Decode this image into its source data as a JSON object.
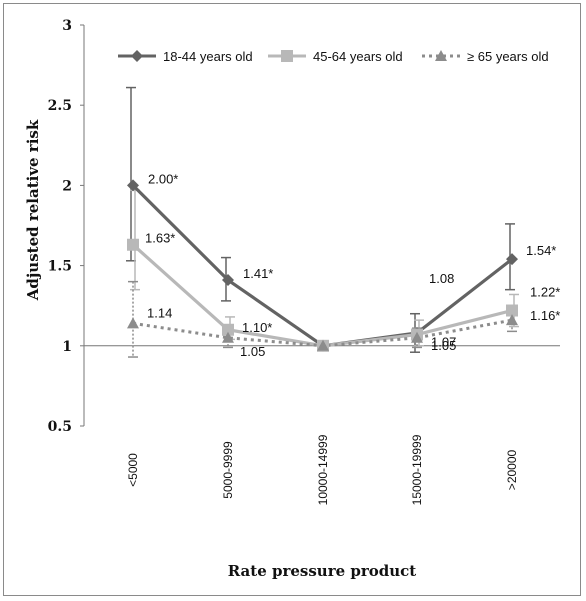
{
  "chart_data": {
    "type": "line",
    "xlabel": "Rate pressure product",
    "ylabel": "Adjusted relative risk",
    "categories": [
      "<5000",
      "5000-9999",
      "10000-14999",
      "15000-19999",
      ">20000"
    ],
    "ylim": [
      0.5,
      3
    ],
    "yticks": [
      "0.5",
      "1",
      "1.5",
      "2",
      "2.5",
      "3"
    ],
    "grid": false,
    "legend_position": "top",
    "series": [
      {
        "name": "18-44 years old",
        "values": [
          2.0,
          1.41,
          1.0,
          1.08,
          1.54
        ],
        "err_low": [
          1.53,
          1.28,
          null,
          0.96,
          1.35
        ],
        "err_high": [
          2.61,
          1.55,
          null,
          1.2,
          1.76
        ],
        "color": "#636363",
        "marker": "diamond",
        "line": "solid",
        "labels": [
          "2.00*",
          "1.41*",
          "",
          "1.08",
          "1.54*"
        ]
      },
      {
        "name": "45-64 years old",
        "values": [
          1.63,
          1.1,
          1.0,
          1.07,
          1.22
        ],
        "err_low": [
          1.35,
          1.04,
          null,
          1.0,
          1.12
        ],
        "err_high": [
          1.97,
          1.18,
          null,
          1.16,
          1.32
        ],
        "color": "#b8b8b8",
        "marker": "square",
        "line": "solid",
        "labels": [
          "1.63*",
          "1.10*",
          "",
          "1.07",
          "1.22*"
        ]
      },
      {
        "name": "≥ 65 years old",
        "values": [
          1.14,
          1.05,
          1.0,
          1.05,
          1.16
        ],
        "err_low": [
          0.93,
          0.99,
          null,
          0.99,
          1.09
        ],
        "err_high": [
          1.4,
          1.11,
          null,
          1.11,
          1.24
        ],
        "color": "#8c8c8c",
        "marker": "triangle",
        "line": "dotted",
        "labels": [
          "1.14",
          "1.05",
          "",
          "1.05",
          "1.16*"
        ]
      }
    ]
  }
}
